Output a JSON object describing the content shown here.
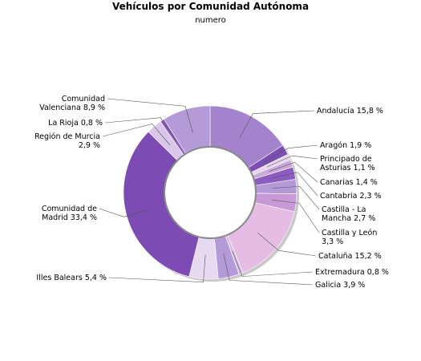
{
  "chart_data": {
    "type": "pie",
    "title": "Vehículos por Comunidad Autónoma",
    "subtitle": "numero",
    "donut": true,
    "start": "top, clockwise",
    "slices": [
      {
        "name": "Andalucía",
        "value": 15.8,
        "label_lines": [
          "Andalucía 15,8 %"
        ],
        "color": "#a384cc"
      },
      {
        "name": "Aragón",
        "value": 1.9,
        "label_lines": [
          "Aragón 1,9 %"
        ],
        "color": "#7a4eb2"
      },
      {
        "name": "Principado de Asturias",
        "value": 1.1,
        "label_lines": [
          "Principado de",
          "Asturias 1,1 %"
        ],
        "color": "#e8d6ee"
      },
      {
        "name": "Canarias",
        "value": 1.4,
        "label_lines": [
          "Canarias 1,4 %"
        ],
        "color": "#c8aadc"
      },
      {
        "name": "Cantabria",
        "value": 2.3,
        "label_lines": [
          "Cantabria 2,3 %"
        ],
        "color": "#8d5cc0"
      },
      {
        "name": "Castilla - La Mancha",
        "value": 2.7,
        "label_lines": [
          "Castilla - La",
          "Mancha 2,7 %"
        ],
        "color": "#b39ad6"
      },
      {
        "name": "Castilla y León",
        "value": 3.3,
        "label_lines": [
          "Castilla y León",
          "3,3 %"
        ],
        "color": "#c79ad6"
      },
      {
        "name": "Cataluña",
        "value": 15.2,
        "label_lines": [
          "Cataluña 15,2 %"
        ],
        "color": "#e4bce4"
      },
      {
        "name": "Extremadura",
        "value": 0.8,
        "label_lines": [
          "Extremadura 0,8 %"
        ],
        "color": "#d8bce6"
      },
      {
        "name": "Galicia",
        "value": 3.9,
        "label_lines": [
          "Galicia 3,9 %"
        ],
        "color": "#b49ad8"
      },
      {
        "name": "Illes Balears",
        "value": 5.4,
        "label_lines": [
          "Illes Balears 5,4 %"
        ],
        "color": "#e6daf0"
      },
      {
        "name": "Comunidad de Madrid",
        "value": 33.4,
        "label_lines": [
          "Comunidad de",
          "Madrid 33,4 %"
        ],
        "color": "#7c4cb4"
      },
      {
        "name": "Región de Murcia",
        "value": 2.9,
        "label_lines": [
          "Región de Murcia",
          "2,9 %"
        ],
        "color": "#dac6ea"
      },
      {
        "name": "La Rioja",
        "value": 0.8,
        "label_lines": [
          "La Rioja 0,8 %"
        ],
        "color": "#8a5cc0"
      },
      {
        "name": "Comunidad Valenciana",
        "value": 8.9,
        "label_lines": [
          "Comunidad",
          "Valenciana 8,9 %"
        ],
        "color": "#b49ad6"
      }
    ]
  }
}
